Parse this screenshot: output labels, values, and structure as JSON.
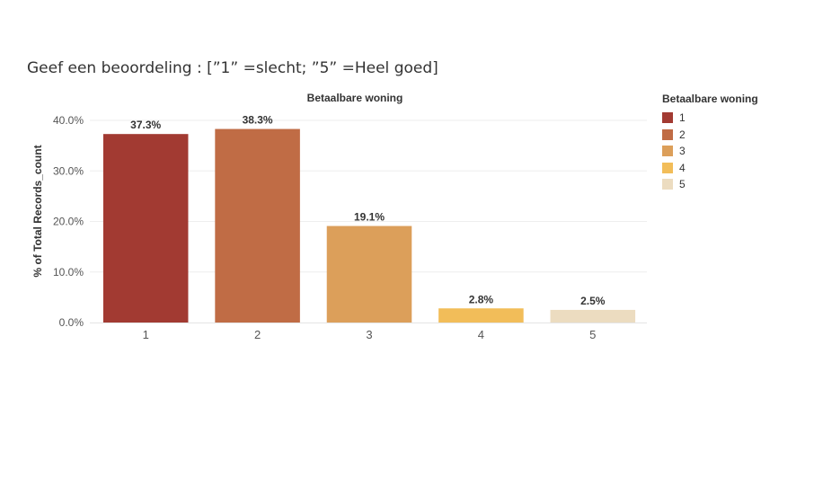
{
  "page": {
    "title": "Geef een beoordeling : [”1” =slecht; ”5” =Heel goed]"
  },
  "legend": {
    "title": "Betaalbare woning",
    "items": [
      {
        "label": "1",
        "color": "#a23a32"
      },
      {
        "label": "2",
        "color": "#c06c45"
      },
      {
        "label": "3",
        "color": "#dc9f5a"
      },
      {
        "label": "4",
        "color": "#f2bd59"
      },
      {
        "label": "5",
        "color": "#ecdcc0"
      }
    ]
  },
  "chart_data": {
    "type": "bar",
    "title": "Betaalbare woning",
    "ylabel": "% of Total Records_count",
    "xlabel": "",
    "categories": [
      "1",
      "2",
      "3",
      "4",
      "5"
    ],
    "values": [
      37.3,
      38.3,
      19.1,
      2.8,
      2.5
    ],
    "value_labels": [
      "37.3%",
      "38.3%",
      "19.1%",
      "2.8%",
      "2.5%"
    ],
    "colors": [
      "#a23a32",
      "#c06c45",
      "#dc9f5a",
      "#f2bd59",
      "#ecdcc0"
    ],
    "ylim": [
      0,
      40
    ],
    "yticks": [
      0,
      10,
      20,
      30,
      40
    ],
    "ytick_labels": [
      "0.0%",
      "10.0%",
      "20.0%",
      "30.0%",
      "40.0%"
    ],
    "grid": true,
    "legend_position": "right"
  }
}
